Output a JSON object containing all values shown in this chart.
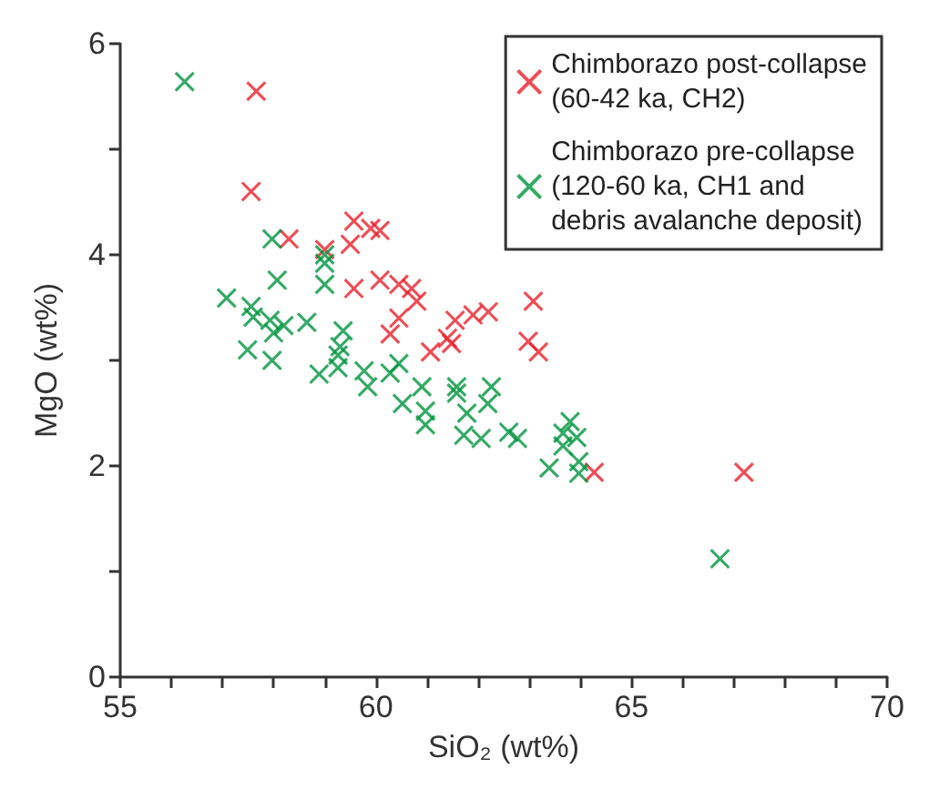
{
  "chart_data": {
    "type": "scatter",
    "xlabel": "SiO₂ (wt%)",
    "ylabel": "MgO (wt%)",
    "xlim": [
      55,
      70
    ],
    "xticks": [
      55,
      {
        "value": 56,
        "label": null
      },
      {
        "value": 57,
        "label": null
      },
      {
        "value": 58,
        "label": null
      },
      {
        "value": 59,
        "label": null
      },
      60,
      {
        "value": 61,
        "label": null
      },
      {
        "value": 62,
        "label": null
      },
      {
        "value": 63,
        "label": null
      },
      {
        "value": 64,
        "label": null
      },
      65,
      {
        "value": 66,
        "label": null
      },
      {
        "value": 67,
        "label": null
      },
      {
        "value": 68,
        "label": null
      },
      {
        "value": 69,
        "label": null
      },
      70
    ],
    "ylim": [
      0,
      6
    ],
    "yticks": [
      0,
      {
        "value": 1,
        "label": null
      },
      2,
      {
        "value": 3,
        "label": null
      },
      4,
      {
        "value": 5,
        "label": null
      },
      6
    ],
    "marker": "cross",
    "grid": false,
    "legend": "top right",
    "series": [
      {
        "name": "Chimborazo post-collapse\n(60-42 ka, CH2)",
        "color": "#e8202a",
        "x": [
          57.66,
          57.56,
          58.3,
          59.0,
          59.5,
          59.57,
          59.9,
          60.08,
          59.57,
          60.08,
          60.45,
          60.7,
          60.8,
          60.45,
          60.28,
          61.07,
          61.4,
          61.55,
          61.48,
          61.9,
          62.2,
          63.08,
          62.98,
          63.18,
          64.27,
          67.2
        ],
        "values": [
          5.55,
          4.6,
          4.15,
          4.05,
          4.1,
          4.32,
          4.25,
          4.23,
          3.68,
          3.76,
          3.72,
          3.68,
          3.56,
          3.4,
          3.25,
          3.08,
          3.21,
          3.38,
          3.16,
          3.43,
          3.46,
          3.56,
          3.18,
          3.08,
          1.94,
          1.94
        ]
      },
      {
        "name": "Chimborazo pre-collapse\n(120-60 ka, CH1 and\ndebris avalanche deposit)",
        "color": "#00953f",
        "x": [
          56.26,
          57.97,
          58.07,
          59.0,
          59.0,
          59.0,
          57.08,
          57.56,
          57.6,
          57.93,
          58.0,
          58.2,
          58.65,
          59.36,
          57.49,
          57.97,
          59.3,
          59.26,
          59.26,
          58.89,
          59.77,
          59.84,
          60.28,
          60.45,
          60.52,
          60.9,
          60.97,
          60.97,
          61.58,
          61.58,
          61.78,
          62.19,
          62.26,
          61.72,
          62.06,
          62.6,
          62.77,
          63.8,
          63.66,
          63.93,
          63.66,
          63.39,
          63.97,
          63.97,
          66.73
        ],
        "values": [
          5.64,
          4.15,
          3.76,
          4.0,
          3.92,
          3.72,
          3.59,
          3.51,
          3.41,
          3.38,
          3.26,
          3.33,
          3.36,
          3.28,
          3.1,
          3.0,
          3.13,
          3.05,
          2.93,
          2.87,
          2.9,
          2.75,
          2.88,
          2.97,
          2.59,
          2.75,
          2.52,
          2.39,
          2.75,
          2.69,
          2.5,
          2.59,
          2.75,
          2.29,
          2.26,
          2.32,
          2.26,
          2.42,
          2.31,
          2.27,
          2.19,
          1.98,
          2.04,
          1.93,
          1.12
        ]
      }
    ]
  }
}
